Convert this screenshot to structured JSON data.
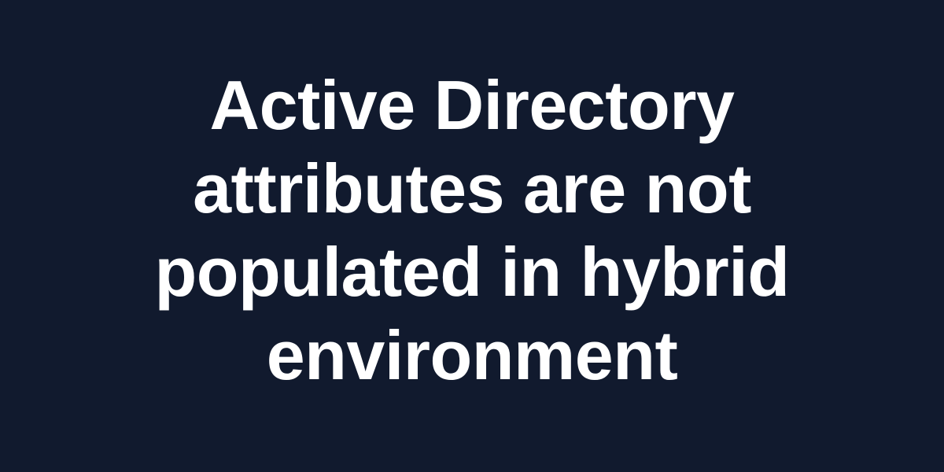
{
  "colors": {
    "background": "#111a2e",
    "text": "#ffffff"
  },
  "title": {
    "lines": [
      "Active Directory",
      "attributes are not",
      "populated in hybrid",
      "environment"
    ]
  }
}
